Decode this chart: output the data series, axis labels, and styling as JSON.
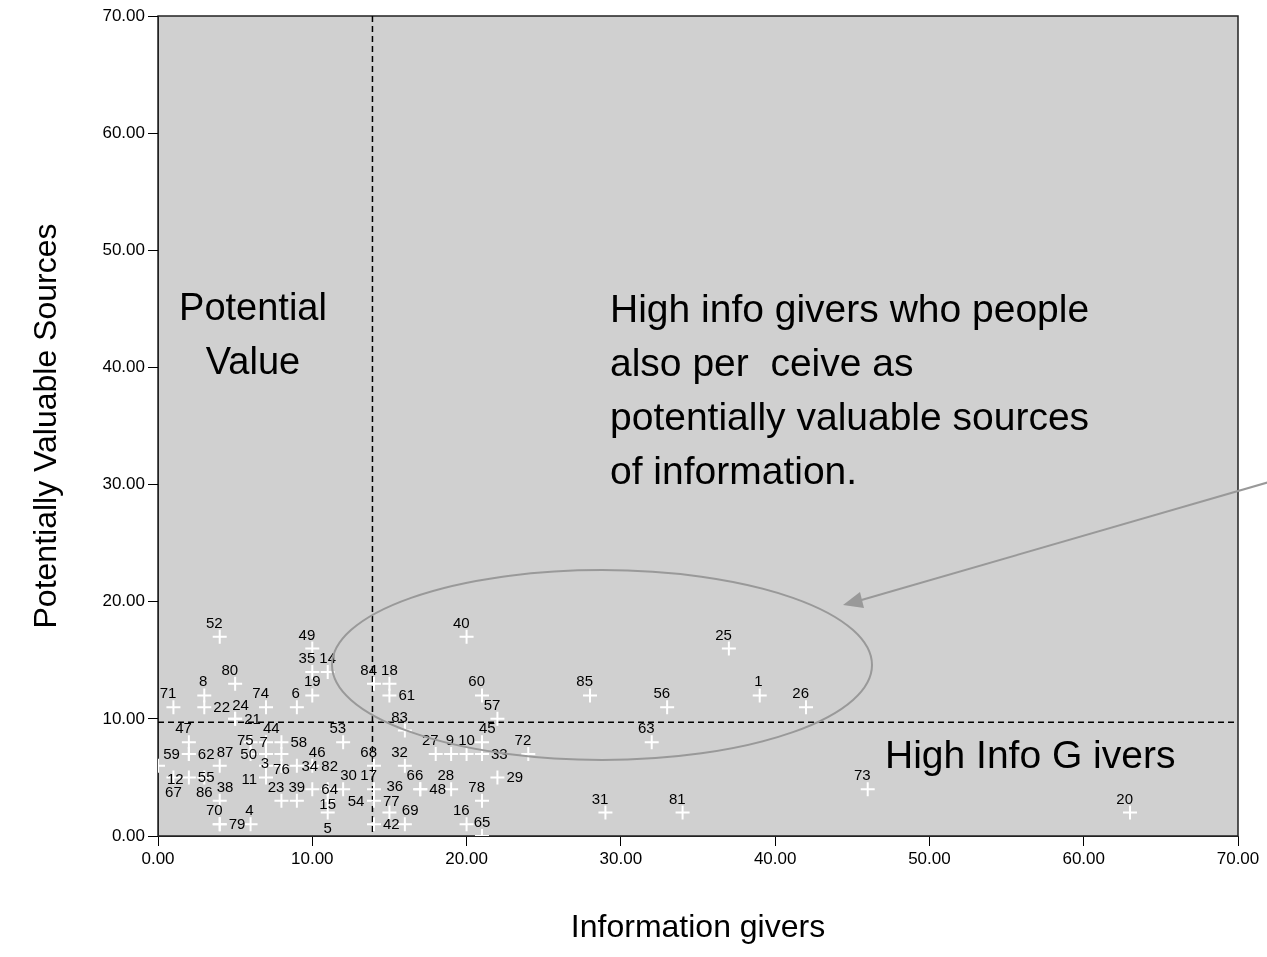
{
  "chart_data": {
    "type": "scatter",
    "xlabel": "Information givers",
    "ylabel": "Potentially Valuable Sources",
    "annotations": [
      "Potential Value",
      "High info givers who people also per  ceive as potentially valuable sources  of information.",
      "High Info G ivers",
      {
        "text": "52",
        "x": 4,
        "y": 17
      },
      {
        "text": "80",
        "x": 5,
        "y": 13
      },
      {
        "text": "8",
        "x": 3,
        "y": 12
      },
      {
        "text": "22",
        "x": 3,
        "y": 11
      },
      {
        "text": "71",
        "x": 1,
        "y": 11
      },
      {
        "text": "24",
        "x": 5,
        "y": 10
      },
      {
        "text": "21",
        "x": 5,
        "y": 10
      },
      {
        "text": "74",
        "x": 7,
        "y": 11
      },
      {
        "text": "6",
        "x": 9,
        "y": 11
      },
      {
        "text": "49",
        "x": 10,
        "y": 16
      },
      {
        "text": "35",
        "x": 10,
        "y": 14
      },
      {
        "text": "14",
        "x": 11,
        "y": 14
      },
      {
        "text": "19",
        "x": 10,
        "y": 12
      },
      {
        "text": "53",
        "x": 12,
        "y": 8
      },
      {
        "text": "47",
        "x": 2,
        "y": 8
      },
      {
        "text": "62",
        "x": 2,
        "y": 7
      },
      {
        "text": "59",
        "x": 2,
        "y": 7
      },
      {
        "text": "12",
        "x": 0,
        "y": 6
      },
      {
        "text": "67",
        "x": 1,
        "y": 5
      },
      {
        "text": "55",
        "x": 2,
        "y": 5
      },
      {
        "text": "86",
        "x": 3,
        "y": 5
      },
      {
        "text": "87",
        "x": 4,
        "y": 6
      },
      {
        "text": "38",
        "x": 4,
        "y": 3
      },
      {
        "text": "70",
        "x": 4,
        "y": 1
      },
      {
        "text": "79",
        "x": 4,
        "y": 1
      },
      {
        "text": "4",
        "x": 6,
        "y": 1
      },
      {
        "text": "7",
        "x": 6,
        "y": 8
      },
      {
        "text": "44",
        "x": 7,
        "y": 8
      },
      {
        "text": "58",
        "x": 8,
        "y": 8
      },
      {
        "text": "75",
        "x": 6,
        "y": 7
      },
      {
        "text": "50",
        "x": 7,
        "y": 7
      },
      {
        "text": "76",
        "x": 8,
        "y": 7
      },
      {
        "text": "11",
        "x": 7,
        "y": 6
      },
      {
        "text": "3",
        "x": 7,
        "y": 5
      },
      {
        "text": "34",
        "x": 8,
        "y": 6
      },
      {
        "text": "46",
        "x": 9,
        "y": 6
      },
      {
        "text": "82",
        "x": 10,
        "y": 6
      },
      {
        "text": "23",
        "x": 8,
        "y": 3
      },
      {
        "text": "39",
        "x": 9,
        "y": 3
      },
      {
        "text": "64",
        "x": 10,
        "y": 4
      },
      {
        "text": "15",
        "x": 11,
        "y": 4
      },
      {
        "text": "30",
        "x": 12,
        "y": 4
      },
      {
        "text": "54",
        "x": 11,
        "y": 3
      },
      {
        "text": "5",
        "x": 11,
        "y": 2
      },
      {
        "text": "68",
        "x": 14,
        "y": 6
      },
      {
        "text": "17",
        "x": 14,
        "y": 4
      },
      {
        "text": "77",
        "x": 14,
        "y": 3
      },
      {
        "text": "42",
        "x": 14,
        "y": 1
      },
      {
        "text": "36",
        "x": 15,
        "y": 2
      },
      {
        "text": "69",
        "x": 16,
        "y": 1
      },
      {
        "text": "84",
        "x": 14,
        "y": 13
      },
      {
        "text": "18",
        "x": 15,
        "y": 13
      },
      {
        "text": "61",
        "x": 15,
        "y": 12
      },
      {
        "text": "83",
        "x": 16,
        "y": 9
      },
      {
        "text": "32",
        "x": 16,
        "y": 6
      },
      {
        "text": "66",
        "x": 17,
        "y": 4
      },
      {
        "text": "48",
        "x": 17,
        "y": 4
      },
      {
        "text": "28",
        "x": 19,
        "y": 4
      },
      {
        "text": "27",
        "x": 18,
        "y": 7
      },
      {
        "text": "9",
        "x": 19,
        "y": 7
      },
      {
        "text": "10",
        "x": 20,
        "y": 7
      },
      {
        "text": "45",
        "x": 21,
        "y": 8
      },
      {
        "text": "33",
        "x": 21,
        "y": 7
      },
      {
        "text": "60",
        "x": 21,
        "y": 12
      },
      {
        "text": "57",
        "x": 22,
        "y": 10
      },
      {
        "text": "40",
        "x": 20,
        "y": 17
      },
      {
        "text": "72",
        "x": 24,
        "y": 7
      },
      {
        "text": "29",
        "x": 22,
        "y": 5
      },
      {
        "text": "78",
        "x": 21,
        "y": 3
      },
      {
        "text": "16",
        "x": 20,
        "y": 1
      },
      {
        "text": "65",
        "x": 21,
        "y": 0
      },
      {
        "text": "25",
        "x": 37,
        "y": 16
      },
      {
        "text": "85",
        "x": 28,
        "y": 12
      },
      {
        "text": "56",
        "x": 33,
        "y": 11
      },
      {
        "text": "1",
        "x": 39,
        "y": 12
      },
      {
        "text": "26",
        "x": 42,
        "y": 11
      },
      {
        "text": "63",
        "x": 32,
        "y": 8
      },
      {
        "text": "73",
        "x": 46,
        "y": 4
      },
      {
        "text": "31",
        "x": 29,
        "y": 2
      },
      {
        "text": "81",
        "x": 34,
        "y": 2
      },
      {
        "text": "20",
        "x": 63,
        "y": 2
      }
    ],
    "x": [
      4,
      5,
      3,
      3,
      1,
      5,
      5,
      7,
      9,
      10,
      10,
      11,
      10,
      12,
      2,
      2,
      2,
      0,
      1,
      2,
      3,
      4,
      4,
      4,
      4,
      6,
      6,
      7,
      8,
      6,
      7,
      8,
      7,
      7,
      8,
      9,
      10,
      8,
      9,
      10,
      11,
      12,
      11,
      11,
      14,
      14,
      14,
      14,
      15,
      16,
      14,
      15,
      15,
      16,
      16,
      17,
      17,
      19,
      18,
      19,
      20,
      21,
      21,
      21,
      22,
      20,
      24,
      22,
      21,
      20,
      21,
      37,
      28,
      33,
      39,
      42,
      32,
      46,
      29,
      34,
      63
    ],
    "series": [
      {
        "color": "#ffffff",
        "marker": "cross",
        "values": [
          17,
          13,
          12,
          11,
          11,
          10,
          10,
          11,
          11,
          16,
          14,
          14,
          12,
          8,
          8,
          7,
          7,
          6,
          5,
          5,
          5,
          6,
          3,
          1,
          1,
          1,
          8,
          8,
          8,
          7,
          7,
          7,
          6,
          5,
          6,
          6,
          6,
          3,
          3,
          4,
          4,
          4,
          3,
          2,
          6,
          4,
          3,
          1,
          2,
          1,
          13,
          13,
          12,
          9,
          6,
          4,
          4,
          4,
          7,
          7,
          7,
          8,
          7,
          12,
          10,
          17,
          7,
          5,
          3,
          1,
          0,
          16,
          12,
          11,
          12,
          11,
          8,
          4,
          2,
          2,
          2
        ]
      }
    ],
    "xlim": [
      0,
      70
    ],
    "ylim": [
      0,
      70
    ],
    "xticks": [
      {
        "value": 0,
        "label": "0.00"
      },
      {
        "value": 10,
        "label": "10.00"
      },
      {
        "value": 20,
        "label": "20.00"
      },
      {
        "value": 30,
        "label": "30.00"
      },
      {
        "value": 40,
        "label": "40.00"
      },
      {
        "value": 50,
        "label": "50.00"
      },
      {
        "value": 60,
        "label": "60.00"
      },
      {
        "value": 70,
        "label": "70.00"
      }
    ],
    "yticks": [
      {
        "value": 0,
        "label": "0.00"
      },
      {
        "value": 10,
        "label": "10.00"
      },
      {
        "value": 20,
        "label": "20.00"
      },
      {
        "value": 30,
        "label": "30.00"
      },
      {
        "value": 40,
        "label": "40.00"
      },
      {
        "value": 50,
        "label": "50.00"
      },
      {
        "value": 60,
        "label": "60.00"
      },
      {
        "value": 70,
        "label": "70.00"
      }
    ],
    "ref_lines": [
      {
        "axis": "x",
        "value": 13.9,
        "line_style": "dashed",
        "color": "#000000"
      },
      {
        "axis": "y",
        "value": 9.7,
        "line_style": "dashed",
        "color": "#000000"
      }
    ],
    "grid": false,
    "legend": false
  }
}
